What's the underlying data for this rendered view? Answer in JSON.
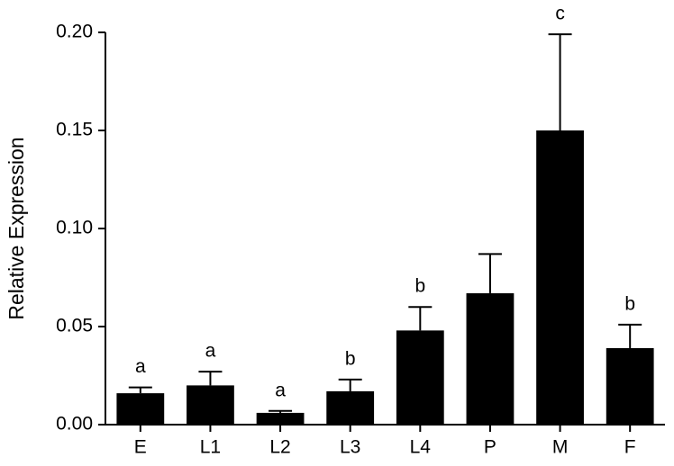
{
  "chart_data": {
    "type": "bar",
    "y_label": "Relative Expression",
    "categories": [
      "E",
      "L1",
      "L2",
      "L3",
      "L4",
      "P",
      "M",
      "F"
    ],
    "values": [
      0.016,
      0.02,
      0.006,
      0.017,
      0.048,
      0.067,
      0.15,
      0.039
    ],
    "errors": [
      0.003,
      0.007,
      0.001,
      0.006,
      0.012,
      0.02,
      0.049,
      0.012
    ],
    "annotations": [
      "a",
      "a",
      "a",
      "b",
      "b",
      null,
      "c",
      "b"
    ],
    "color": "#000000",
    "ylim": [
      0,
      0.2
    ],
    "yticks": [
      {
        "value": 0,
        "label": "0.00"
      },
      {
        "value": 0.05,
        "label": "0.05"
      },
      {
        "value": 0.1,
        "label": "0.10"
      },
      {
        "value": 0.15,
        "label": "0.15"
      },
      {
        "value": 0.2,
        "label": "0.20"
      }
    ]
  }
}
